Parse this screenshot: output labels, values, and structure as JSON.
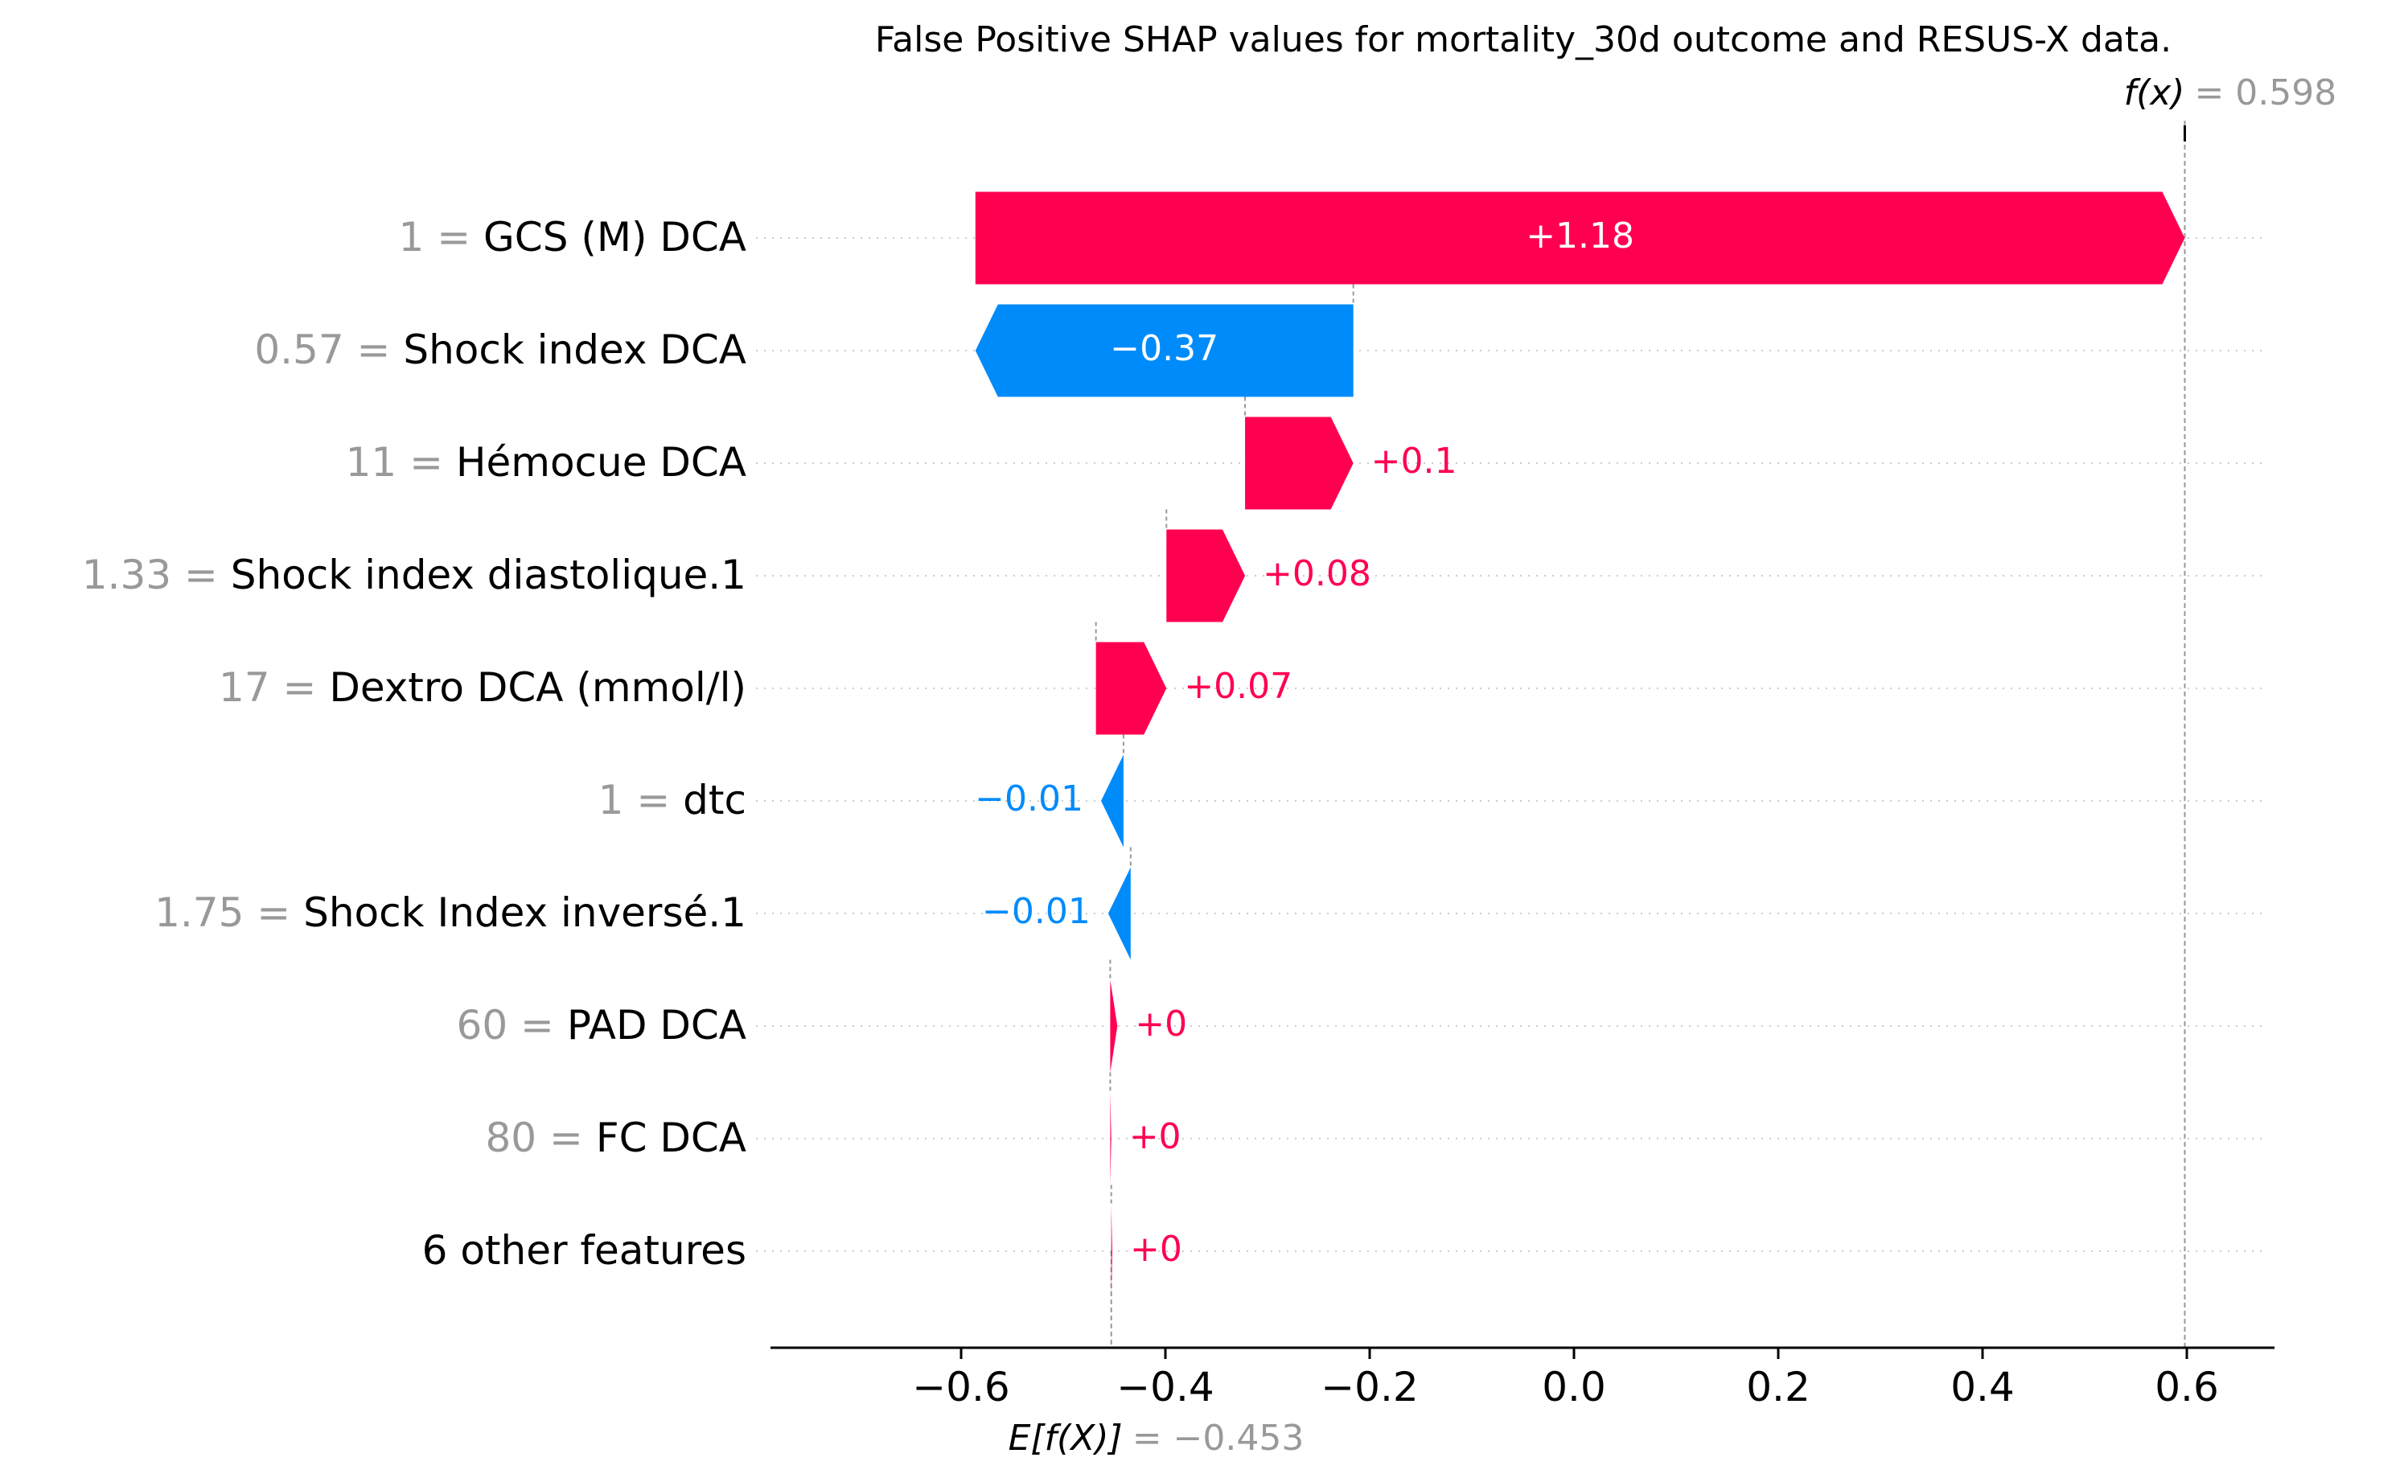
{
  "chart_data": {
    "type": "waterfall",
    "title": "False Positive SHAP values for mortality_30d outcome and RESUS-X data.",
    "base_value": -0.453,
    "output_value": 0.598,
    "fx_label": "f(x)",
    "fx_value_text": "= 0.598",
    "efx_label": "E[f(X)]",
    "efx_value_text": "= −0.453",
    "xlim": [
      -0.78,
      0.68
    ],
    "xticks": [
      -0.6,
      -0.4,
      -0.2,
      0.0,
      0.2,
      0.4,
      0.6
    ],
    "xtick_labels": [
      "−0.6",
      "−0.4",
      "−0.2",
      "0.0",
      "0.2",
      "0.4",
      "0.6"
    ],
    "colors": {
      "positive": "#ff0051",
      "negative": "#008bfb",
      "value_text": "#999999",
      "axis": "#000000"
    },
    "features": [
      {
        "value_text": "1 =",
        "name": "GCS (M) DCA",
        "shap": 1.18,
        "label": "+1.18",
        "start": -0.586,
        "end": 0.598
      },
      {
        "value_text": "0.57 =",
        "name": "Shock index DCA",
        "shap": -0.37,
        "label": "−0.37",
        "start": -0.216,
        "end": -0.586
      },
      {
        "value_text": "11 =",
        "name": "Hémocue DCA",
        "shap": 0.1,
        "label": "+0.1",
        "start": -0.322,
        "end": -0.216
      },
      {
        "value_text": "1.33 =",
        "name": "Shock index diastolique.1",
        "shap": 0.08,
        "label": "+0.08",
        "start": -0.399,
        "end": -0.322
      },
      {
        "value_text": "17 =",
        "name": "Dextro DCA (mmol/l)",
        "shap": 0.07,
        "label": "+0.07",
        "start": -0.468,
        "end": -0.399
      },
      {
        "value_text": "1 =",
        "name": "dtc",
        "shap": -0.01,
        "label": "−0.01",
        "start": -0.441,
        "end": -0.463
      },
      {
        "value_text": "1.75 =",
        "name": "Shock Index inversé.1",
        "shap": -0.01,
        "label": "−0.01",
        "start": -0.434,
        "end": -0.456
      },
      {
        "value_text": "60 =",
        "name": "PAD DCA",
        "shap": 0.0,
        "label": "+0",
        "start": -0.454,
        "end": -0.447
      },
      {
        "value_text": "80 =",
        "name": "FC  DCA",
        "shap": 0.0,
        "label": "+0",
        "start": -0.454,
        "end": -0.453
      },
      {
        "value_text": "",
        "name": "6 other features",
        "shap": 0.0,
        "label": "+0",
        "start": -0.453,
        "end": -0.452
      }
    ]
  }
}
